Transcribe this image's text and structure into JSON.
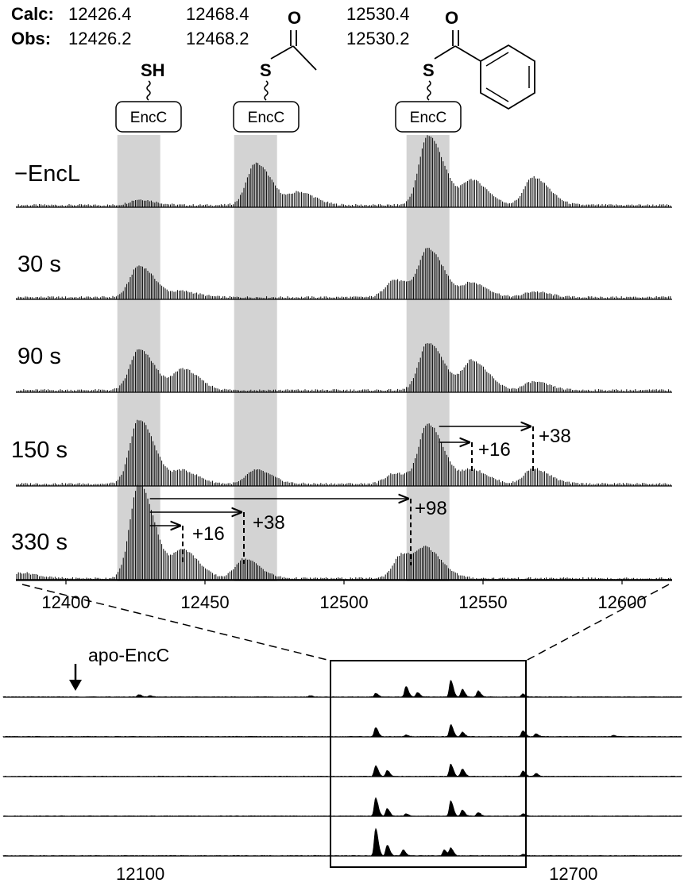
{
  "chart_data": [
    {
      "type": "line",
      "x_tick_labels": [
        "12400",
        "12450",
        "12500",
        "12550",
        "12600"
      ],
      "xlim": [
        12382,
        12618
      ],
      "highlighted_x": [
        12426.2,
        12468.2,
        12530.2
      ],
      "header": {
        "calc_label": "Calc:",
        "obs_label": "Obs:",
        "calc_values": [
          "12426.4",
          "12468.4",
          "12530.4"
        ],
        "obs_values": [
          "12426.2",
          "12468.2",
          "12530.2"
        ]
      },
      "structures": [
        {
          "thiol": "SH",
          "protein": "EncC",
          "x": 12426.2
        },
        {
          "thiol": "S",
          "acyl": "acetyl",
          "oxygen": "O",
          "protein": "EncC",
          "x": 12468.2
        },
        {
          "thiol": "S",
          "acyl": "benzoyl",
          "oxygen": "O",
          "protein": "EncC",
          "x": 12530.2
        }
      ],
      "series": [
        {
          "name": "−EncL",
          "peaks": [
            [
              12426.2,
              0.08
            ],
            [
              12468.2,
              0.6
            ],
            [
              12484,
              0.18
            ],
            [
              12530.2,
              1.0
            ],
            [
              12546,
              0.35
            ],
            [
              12568,
              0.4
            ]
          ]
        },
        {
          "name": "30 s",
          "peaks": [
            [
              12426.2,
              0.45
            ],
            [
              12442,
              0.08
            ],
            [
              12518,
              0.25
            ],
            [
              12530.2,
              0.68
            ],
            [
              12546,
              0.2
            ],
            [
              12568,
              0.08
            ]
          ]
        },
        {
          "name": "90 s",
          "peaks": [
            [
              12426.2,
              0.58
            ],
            [
              12442,
              0.3
            ],
            [
              12530.2,
              0.68
            ],
            [
              12546,
              0.42
            ],
            [
              12568,
              0.12
            ]
          ]
        },
        {
          "name": "150 s",
          "peaks": [
            [
              12426.2,
              0.92
            ],
            [
              12442,
              0.18
            ],
            [
              12468.2,
              0.2
            ],
            [
              12518,
              0.15
            ],
            [
              12530.2,
              0.85
            ],
            [
              12546,
              0.2
            ],
            [
              12568,
              0.22
            ]
          ]
        },
        {
          "name": "330 s",
          "peaks": [
            [
              12384,
              0.08
            ],
            [
              12426.2,
              1.35
            ],
            [
              12442,
              0.4
            ],
            [
              12464,
              0.28
            ],
            [
              12521,
              0.35
            ],
            [
              12530.2,
              0.35
            ]
          ]
        }
      ],
      "annotations": [
        {
          "label": "+16",
          "trace": "150 s",
          "from": 12530.2,
          "to": 12546
        },
        {
          "label": "+38",
          "trace": "150 s",
          "from": 12530.2,
          "to": 12568
        },
        {
          "label": "+16",
          "trace": "330 s",
          "from": 12426.2,
          "to": 12442
        },
        {
          "label": "+38",
          "trace": "330 s",
          "from": 12426.2,
          "to": 12464
        },
        {
          "label": "+98",
          "trace": "330 s",
          "from": 12426.2,
          "to": 12524
        }
      ]
    },
    {
      "type": "area",
      "x_tick_labels": [
        "12100",
        "12700"
      ],
      "xlim": [
        11910,
        12850
      ],
      "annotation": {
        "label": "apo-EncC",
        "x": 12098
      },
      "zoom_window": [
        12382,
        12618
      ],
      "series": [
        {
          "peaks": [
            [
              12098,
              0.08
            ],
            [
              12113,
              0.04
            ],
            [
              12335,
              0.04
            ],
            [
              12426,
              0.12
            ],
            [
              12468,
              0.35
            ],
            [
              12484,
              0.15
            ],
            [
              12530,
              0.55
            ],
            [
              12546,
              0.25
            ],
            [
              12568,
              0.2
            ],
            [
              12630,
              0.1
            ]
          ]
        },
        {
          "peaks": [
            [
              12426,
              0.3
            ],
            [
              12468,
              0.06
            ],
            [
              12530,
              0.4
            ],
            [
              12546,
              0.15
            ],
            [
              12630,
              0.2
            ],
            [
              12648,
              0.1
            ],
            [
              12755,
              0.05
            ]
          ]
        },
        {
          "peaks": [
            [
              12426,
              0.35
            ],
            [
              12442,
              0.2
            ],
            [
              12530,
              0.4
            ],
            [
              12546,
              0.25
            ],
            [
              12630,
              0.18
            ],
            [
              12648,
              0.1
            ]
          ]
        },
        {
          "peaks": [
            [
              12426,
              0.6
            ],
            [
              12442,
              0.25
            ],
            [
              12468,
              0.08
            ],
            [
              12530,
              0.5
            ],
            [
              12546,
              0.2
            ],
            [
              12568,
              0.12
            ],
            [
              12630,
              0.08
            ]
          ]
        },
        {
          "peaks": [
            [
              12426,
              0.9
            ],
            [
              12442,
              0.35
            ],
            [
              12464,
              0.2
            ],
            [
              12521,
              0.2
            ],
            [
              12530,
              0.25
            ],
            [
              12630,
              0.05
            ]
          ]
        }
      ]
    }
  ]
}
